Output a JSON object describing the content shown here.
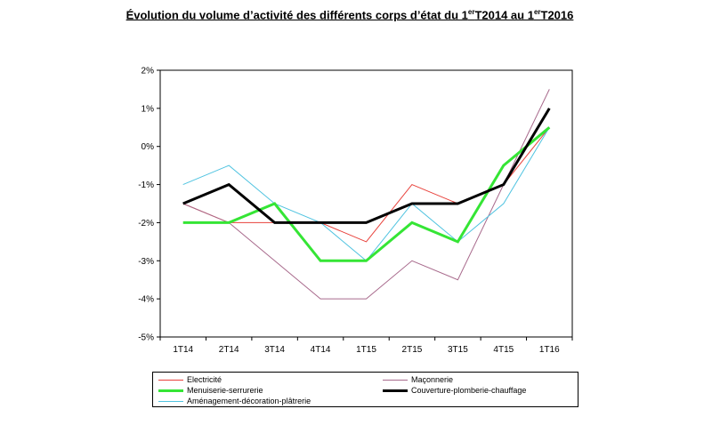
{
  "title": {
    "part1": "Évolution du volume d’activité des différents corps d’état du 1",
    "sup1": "er",
    "part2": "T2014 au 1",
    "sup2": "er",
    "part3": "T2016"
  },
  "chart_data": {
    "type": "line",
    "categories": [
      "1T14",
      "2T14",
      "3T14",
      "4T14",
      "1T15",
      "2T15",
      "3T15",
      "4T15",
      "1T16"
    ],
    "ylim": [
      -5,
      2
    ],
    "yticks": [
      2,
      1,
      0,
      -1,
      -2,
      -3,
      -4,
      -5
    ],
    "ytick_format": "%",
    "grid": false,
    "legend_position": "bottom",
    "series": [
      {
        "name": "Electricité",
        "color": "#e8403a",
        "width": 1,
        "values": [
          -1.5,
          -2.0,
          -2.0,
          -2.0,
          -2.5,
          -1.0,
          -1.5,
          -1.0,
          0.5
        ]
      },
      {
        "name": "Maçonnerie",
        "color": "#a86a8c",
        "width": 1,
        "values": [
          -1.5,
          -2.0,
          -3.0,
          -4.0,
          -4.0,
          -3.0,
          -3.5,
          -1.0,
          1.5
        ]
      },
      {
        "name": "Menuiserie-serrurerie",
        "color": "#35e535",
        "width": 3,
        "values": [
          -2.0,
          -2.0,
          -1.5,
          -3.0,
          -3.0,
          -2.0,
          -2.5,
          -0.5,
          0.5
        ]
      },
      {
        "name": "Couverture-plomberie-chauffage",
        "color": "#000000",
        "width": 3,
        "values": [
          -1.5,
          -1.0,
          -2.0,
          -2.0,
          -2.0,
          -1.5,
          -1.5,
          -1.0,
          1.0
        ]
      },
      {
        "name": "Aménagement-décoration-plâtrerie",
        "color": "#4fc3e0",
        "width": 1,
        "values": [
          -1.0,
          -0.5,
          -1.5,
          -2.0,
          -3.0,
          -1.5,
          -2.5,
          -1.5,
          0.5
        ]
      }
    ]
  }
}
